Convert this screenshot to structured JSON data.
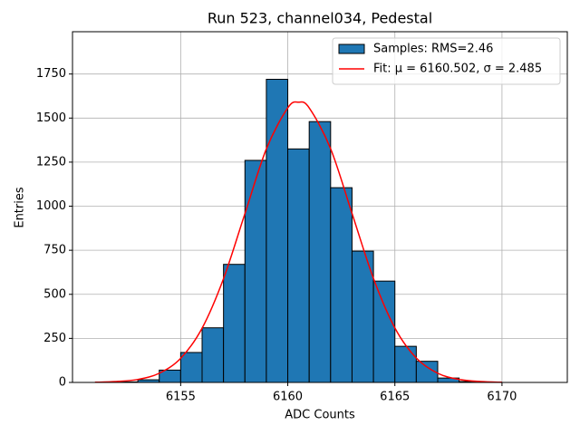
{
  "chart_data": {
    "type": "histogram",
    "title": "Run 523, channel034, Pedestal",
    "x_label": "ADC Counts",
    "y_label": "Entries",
    "xlim": [
      6149.95,
      6173.05
    ],
    "ylim": [
      0,
      1990
    ],
    "xticks": [
      6155,
      6160,
      6165,
      6170
    ],
    "yticks": [
      0,
      250,
      500,
      750,
      1000,
      1250,
      1500,
      1750
    ],
    "grid": true,
    "legend": "upper right",
    "series": [
      {
        "type": "histogram",
        "name": "Samples: RMS=2.46",
        "color": "#1f77b4",
        "edgecolor": "#000000",
        "bins": [
          6151,
          6152,
          6153,
          6154,
          6155,
          6156,
          6157,
          6158,
          6159,
          6160,
          6161,
          6162,
          6163,
          6164,
          6165,
          6166,
          6167,
          6168,
          6169,
          6170,
          6171,
          6172
        ],
        "values": [
          0,
          3,
          15,
          70,
          170,
          310,
          670,
          1260,
          1720,
          1325,
          1480,
          1105,
          745,
          575,
          205,
          120,
          25,
          5,
          0,
          0,
          0
        ]
      },
      {
        "type": "line",
        "name": "Fit: μ = 6160.502, σ = 2.485",
        "color": "#ff0000",
        "x": [
          6151,
          6152,
          6153,
          6154,
          6155,
          6156,
          6157,
          6158,
          6159,
          6160,
          6160.5,
          6161,
          6162,
          6163,
          6164,
          6165,
          6166,
          6167,
          6168,
          6169,
          6170
        ],
        "values": [
          1,
          5,
          17,
          52,
          137,
          308,
          589,
          958,
          1325,
          1558,
          1590,
          1558,
          1326,
          959,
          590,
          309,
          138,
          52,
          17,
          5,
          1
        ]
      }
    ]
  }
}
